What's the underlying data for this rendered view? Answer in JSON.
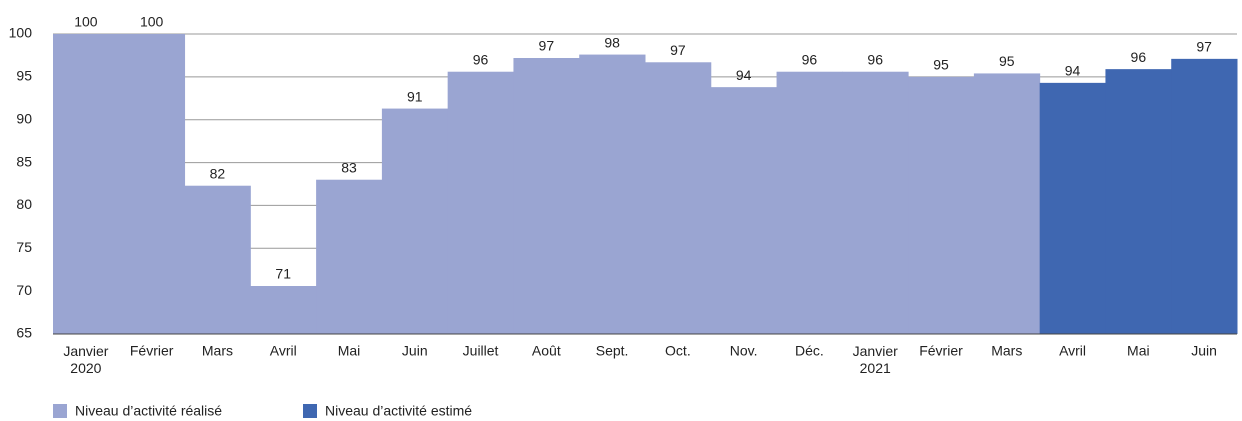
{
  "chart_data": {
    "type": "bar",
    "categories": [
      "Janvier 2020",
      "Février",
      "Mars",
      "Avril",
      "Mai",
      "Juin",
      "Juillet",
      "Août",
      "Sept.",
      "Oct.",
      "Nov.",
      "Déc.",
      "Janvier 2021",
      "Février",
      "Mars",
      "Avril",
      "Mai",
      "Juin"
    ],
    "series": [
      {
        "name": "Niveau d’activité réalisé",
        "color": "#9aa5d2",
        "values": [
          100,
          100,
          82.3,
          70.6,
          83,
          91.3,
          95.6,
          97.2,
          97.6,
          96.7,
          93.8,
          95.6,
          95.6,
          95,
          95.4,
          null,
          null,
          null
        ],
        "value_labels": [
          "100",
          "100",
          "82",
          "71",
          "83",
          "91",
          "96",
          "97",
          "98",
          "97",
          "94",
          "96",
          "96",
          "95",
          "95",
          null,
          null,
          null
        ]
      },
      {
        "name": "Niveau d’activité estimé",
        "color": "#3f67b1",
        "values": [
          null,
          null,
          null,
          null,
          null,
          null,
          null,
          null,
          null,
          null,
          null,
          null,
          null,
          null,
          null,
          94.3,
          95.9,
          97.1
        ],
        "value_labels": [
          null,
          null,
          null,
          null,
          null,
          null,
          null,
          null,
          null,
          null,
          null,
          null,
          null,
          null,
          null,
          "94",
          "96",
          "97"
        ]
      }
    ],
    "ylim": [
      65,
      100
    ],
    "yticks": [
      65,
      70,
      75,
      80,
      85,
      90,
      95,
      100
    ],
    "grid": true,
    "legend": "bottom-left"
  }
}
